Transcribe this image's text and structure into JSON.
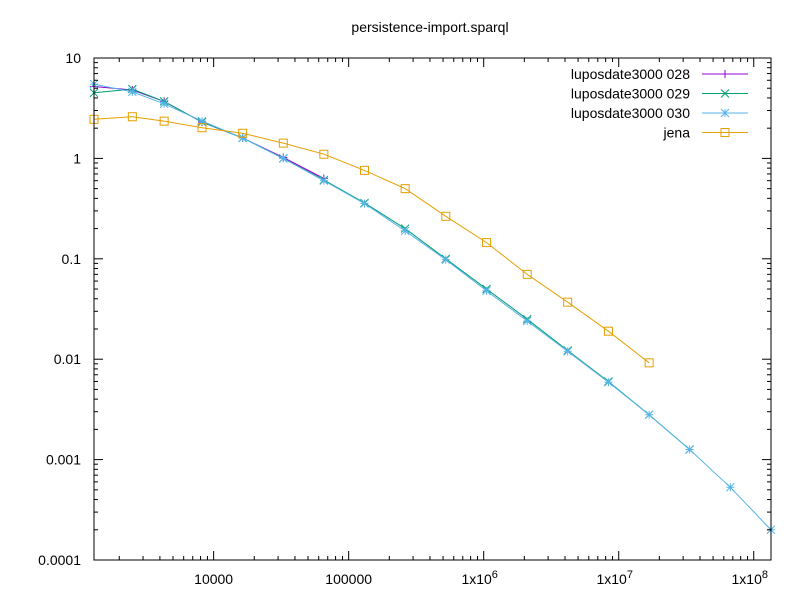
{
  "chart_data": {
    "type": "line",
    "title": "persistence-import.sparql",
    "xlabel": "",
    "ylabel": "",
    "xscale": "log",
    "yscale": "log",
    "xlim": [
      1300,
      134217728
    ],
    "ylim": [
      0.0001,
      10
    ],
    "x_ticks": [
      {
        "value": 10000,
        "label": "10000"
      },
      {
        "value": 100000,
        "label": "100000"
      },
      {
        "value": 1000000,
        "label": "1x10",
        "exp": "6"
      },
      {
        "value": 10000000,
        "label": "1x10",
        "exp": "7"
      },
      {
        "value": 100000000,
        "label": "1x10",
        "exp": "8"
      }
    ],
    "y_ticks": [
      {
        "value": 0.0001,
        "label": "0.0001"
      },
      {
        "value": 0.001,
        "label": "0.001"
      },
      {
        "value": 0.01,
        "label": "0.01"
      },
      {
        "value": 0.1,
        "label": "0.1"
      },
      {
        "value": 1,
        "label": "1"
      },
      {
        "value": 10,
        "label": "10"
      }
    ],
    "grid": false,
    "legend_position": "top-right",
    "series": [
      {
        "name": "luposdate3000 028",
        "color": "#9400d3",
        "marker": "plus",
        "x": [
          1300,
          2500,
          4300,
          8200,
          16400,
          32800,
          65500
        ],
        "y": [
          5.2,
          4.8,
          3.7,
          2.3,
          1.6,
          1.02,
          0.63
        ]
      },
      {
        "name": "luposdate3000 029",
        "color": "#009e73",
        "marker": "cross",
        "x": [
          1300,
          2500,
          4300,
          8200,
          16400,
          32800,
          65500,
          131000,
          262000,
          524000,
          1050000,
          2100000,
          4190000,
          8390000,
          16800000,
          33500000
        ],
        "y": [
          4.5,
          4.9,
          3.7,
          2.3,
          1.6,
          1.0,
          0.61,
          0.36,
          0.2,
          0.1,
          0.05,
          0.025,
          0.0122,
          0.006,
          0.0028,
          0.00126
        ]
      },
      {
        "name": "luposdate3000 030",
        "color": "#56b4e9",
        "marker": "star",
        "x": [
          1300,
          2500,
          4300,
          8200,
          16400,
          32800,
          65500,
          131000,
          262000,
          524000,
          1050000,
          2100000,
          4190000,
          8390000,
          16800000,
          33500000,
          67100000,
          134000000
        ],
        "y": [
          5.5,
          4.6,
          3.5,
          2.35,
          1.6,
          1.0,
          0.6,
          0.355,
          0.19,
          0.098,
          0.048,
          0.024,
          0.012,
          0.0059,
          0.0028,
          0.00126,
          0.00053,
          0.0002
        ]
      },
      {
        "name": "jena",
        "color": "#e69f00",
        "marker": "square",
        "x": [
          1300,
          2500,
          4300,
          8200,
          16400,
          32800,
          65500,
          131000,
          262000,
          524000,
          1050000,
          2100000,
          4190000,
          8390000,
          16800000
        ],
        "y": [
          2.45,
          2.6,
          2.35,
          2.02,
          1.78,
          1.42,
          1.1,
          0.76,
          0.5,
          0.265,
          0.145,
          0.07,
          0.037,
          0.019,
          0.0092
        ]
      }
    ]
  }
}
